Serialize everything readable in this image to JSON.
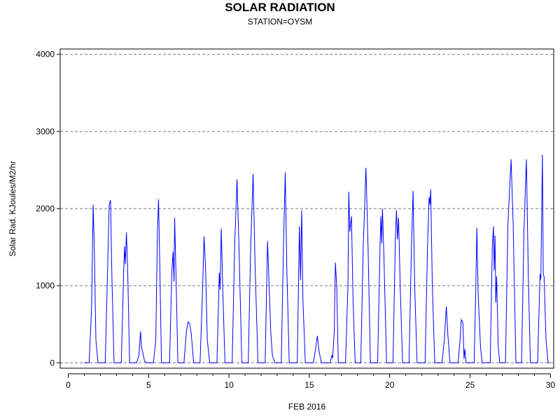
{
  "chart_data": {
    "type": "line",
    "title": "SOLAR RADIATION",
    "subtitle": "STATION=OYSM",
    "xlabel": "FEB 2016",
    "ylabel": "Solar Rad. KJoules/M2/hr",
    "xlim": [
      -0.5,
      30.2
    ],
    "ylim": [
      -70,
      4070
    ],
    "x_ticks": [
      0,
      5,
      10,
      15,
      20,
      25,
      30
    ],
    "y_ticks": [
      0,
      1000,
      2000,
      3000,
      4000
    ],
    "y_tick_labels": [
      "0",
      "1000",
      "2000",
      "3000",
      "4000"
    ],
    "grid": "horizontal dashed",
    "series": [
      {
        "color": "#0000ff",
        "points": [
          [
            1.0,
            0
          ],
          [
            1.3,
            0
          ],
          [
            1.45,
            700
          ],
          [
            1.55,
            2050
          ],
          [
            1.62,
            1500
          ],
          [
            1.72,
            300
          ],
          [
            1.85,
            0
          ],
          [
            2.3,
            0
          ],
          [
            2.45,
            1200
          ],
          [
            2.55,
            2050
          ],
          [
            2.63,
            2110
          ],
          [
            2.72,
            1100
          ],
          [
            2.85,
            0
          ],
          [
            3.3,
            0
          ],
          [
            3.45,
            1200
          ],
          [
            3.5,
            1510
          ],
          [
            3.55,
            1280
          ],
          [
            3.62,
            1690
          ],
          [
            3.7,
            1200
          ],
          [
            3.82,
            0
          ],
          [
            4.25,
            0
          ],
          [
            4.4,
            100
          ],
          [
            4.5,
            410
          ],
          [
            4.55,
            200
          ],
          [
            4.62,
            150
          ],
          [
            4.75,
            20
          ],
          [
            4.9,
            0
          ],
          [
            5.3,
            0
          ],
          [
            5.45,
            300
          ],
          [
            5.55,
            1700
          ],
          [
            5.62,
            2120
          ],
          [
            5.7,
            1200
          ],
          [
            5.8,
            0
          ],
          [
            6.3,
            0
          ],
          [
            6.45,
            1200
          ],
          [
            6.52,
            1440
          ],
          [
            6.58,
            1050
          ],
          [
            6.62,
            1880
          ],
          [
            6.7,
            1200
          ],
          [
            6.82,
            0
          ],
          [
            7.2,
            0
          ],
          [
            7.35,
            400
          ],
          [
            7.45,
            530
          ],
          [
            7.55,
            510
          ],
          [
            7.65,
            380
          ],
          [
            7.8,
            0
          ],
          [
            8.2,
            0
          ],
          [
            8.35,
            900
          ],
          [
            8.45,
            1640
          ],
          [
            8.55,
            1200
          ],
          [
            8.65,
            300
          ],
          [
            8.8,
            0
          ],
          [
            9.25,
            0
          ],
          [
            9.4,
            1170
          ],
          [
            9.45,
            950
          ],
          [
            9.52,
            1740
          ],
          [
            9.62,
            900
          ],
          [
            9.75,
            0
          ],
          [
            10.2,
            0
          ],
          [
            10.35,
            1500
          ],
          [
            10.5,
            2380
          ],
          [
            10.62,
            1500
          ],
          [
            10.8,
            0
          ],
          [
            11.2,
            0
          ],
          [
            11.35,
            1500
          ],
          [
            11.5,
            2450
          ],
          [
            11.62,
            1300
          ],
          [
            11.8,
            0
          ],
          [
            12.25,
            0
          ],
          [
            12.4,
            1580
          ],
          [
            12.5,
            1000
          ],
          [
            12.6,
            400
          ],
          [
            12.7,
            100
          ],
          [
            12.85,
            0
          ],
          [
            13.25,
            0
          ],
          [
            13.4,
            1600
          ],
          [
            13.5,
            2470
          ],
          [
            13.6,
            1200
          ],
          [
            13.75,
            0
          ],
          [
            14.25,
            0
          ],
          [
            14.38,
            1770
          ],
          [
            14.45,
            1070
          ],
          [
            14.52,
            1980
          ],
          [
            14.6,
            800
          ],
          [
            14.75,
            0
          ],
          [
            15.25,
            0
          ],
          [
            15.4,
            200
          ],
          [
            15.5,
            350
          ],
          [
            15.6,
            150
          ],
          [
            15.75,
            0
          ],
          [
            16.3,
            0
          ],
          [
            16.4,
            100
          ],
          [
            16.45,
            60
          ],
          [
            16.55,
            400
          ],
          [
            16.62,
            1300
          ],
          [
            16.7,
            1000
          ],
          [
            16.8,
            0
          ],
          [
            17.25,
            0
          ],
          [
            17.4,
            1000
          ],
          [
            17.45,
            2220
          ],
          [
            17.52,
            1700
          ],
          [
            17.62,
            1900
          ],
          [
            17.72,
            800
          ],
          [
            17.85,
            0
          ],
          [
            18.2,
            0
          ],
          [
            18.35,
            1500
          ],
          [
            18.52,
            2530
          ],
          [
            18.65,
            1500
          ],
          [
            18.8,
            0
          ],
          [
            19.25,
            0
          ],
          [
            19.4,
            1550
          ],
          [
            19.45,
            1900
          ],
          [
            19.5,
            1550
          ],
          [
            19.55,
            2000
          ],
          [
            19.65,
            1300
          ],
          [
            19.8,
            0
          ],
          [
            20.2,
            0
          ],
          [
            20.35,
            1600
          ],
          [
            20.42,
            1980
          ],
          [
            20.48,
            1600
          ],
          [
            20.55,
            1880
          ],
          [
            20.65,
            1000
          ],
          [
            20.8,
            0
          ],
          [
            21.2,
            0
          ],
          [
            21.35,
            1500
          ],
          [
            21.45,
            2230
          ],
          [
            21.55,
            1000
          ],
          [
            21.7,
            0
          ],
          [
            22.2,
            0
          ],
          [
            22.35,
            1500
          ],
          [
            22.45,
            2150
          ],
          [
            22.5,
            2050
          ],
          [
            22.55,
            2250
          ],
          [
            22.65,
            1000
          ],
          [
            22.8,
            0
          ],
          [
            23.25,
            0
          ],
          [
            23.4,
            300
          ],
          [
            23.52,
            730
          ],
          [
            23.62,
            350
          ],
          [
            23.75,
            0
          ],
          [
            24.25,
            0
          ],
          [
            24.38,
            300
          ],
          [
            24.45,
            560
          ],
          [
            24.55,
            520
          ],
          [
            24.62,
            50
          ],
          [
            24.68,
            180
          ],
          [
            24.75,
            0
          ],
          [
            25.25,
            0
          ],
          [
            25.35,
            900
          ],
          [
            25.42,
            1750
          ],
          [
            25.5,
            900
          ],
          [
            25.55,
            650
          ],
          [
            25.65,
            200
          ],
          [
            25.75,
            0
          ],
          [
            26.25,
            0
          ],
          [
            26.38,
            1500
          ],
          [
            26.45,
            1770
          ],
          [
            26.5,
            1200
          ],
          [
            26.55,
            1650
          ],
          [
            26.6,
            780
          ],
          [
            26.65,
            1120
          ],
          [
            26.75,
            200
          ],
          [
            26.85,
            0
          ],
          [
            27.2,
            0
          ],
          [
            27.35,
            1800
          ],
          [
            27.55,
            2640
          ],
          [
            27.68,
            1800
          ],
          [
            27.85,
            0
          ],
          [
            28.2,
            0
          ],
          [
            28.35,
            1700
          ],
          [
            28.5,
            2640
          ],
          [
            28.62,
            1150
          ],
          [
            28.75,
            0
          ],
          [
            29.2,
            0
          ],
          [
            29.35,
            1150
          ],
          [
            29.4,
            1080
          ],
          [
            29.5,
            2700
          ],
          [
            29.55,
            1150
          ],
          [
            29.6,
            1120
          ],
          [
            29.72,
            300
          ],
          [
            29.85,
            0
          ],
          [
            29.95,
            0
          ]
        ]
      }
    ]
  }
}
